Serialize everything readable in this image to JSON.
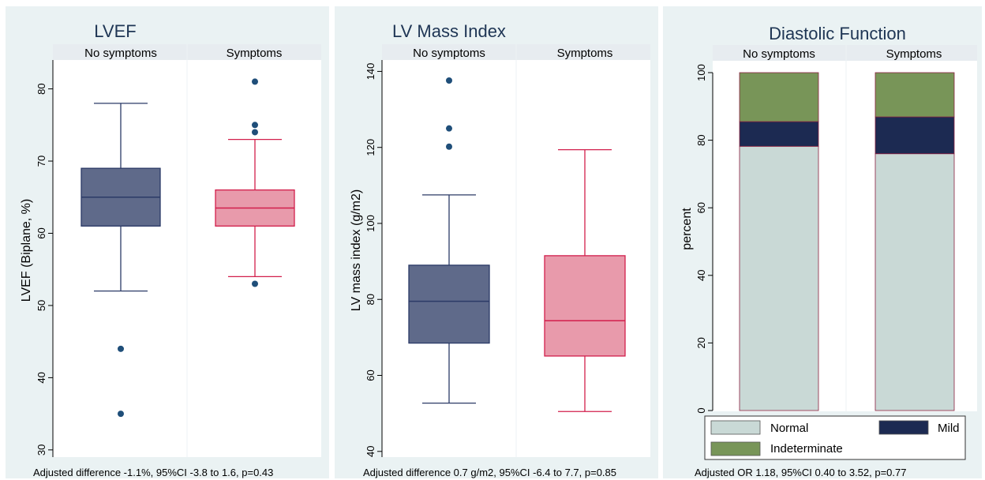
{
  "figure": {
    "panel_bg": "#eaf2f3",
    "plot_bg": "#ffffff",
    "strip_bg": "#e7ecf0"
  },
  "chart_data": [
    {
      "type": "box",
      "title": "LVEF",
      "ylabel": "LVEF (Biplane, %)",
      "ylim": [
        29,
        84
      ],
      "yticks": [
        30,
        40,
        50,
        60,
        70,
        80
      ],
      "grid": false,
      "panels": [
        "No symptoms",
        "Symptoms"
      ],
      "colors": {
        "fill": [
          "#5f6a8a",
          "#e89aab"
        ],
        "line": [
          "#2b3a67",
          "#d21f4c"
        ]
      },
      "boxes": [
        {
          "group": "No symptoms",
          "whisker_low": 52,
          "q1": 61,
          "median": 65,
          "q3": 69,
          "whisker_high": 78,
          "outliers": [
            44,
            35
          ]
        },
        {
          "group": "Symptoms",
          "whisker_low": 54,
          "q1": 61,
          "median": 63.5,
          "q3": 66,
          "whisker_high": 73,
          "outliers": [
            81,
            75,
            74,
            53
          ]
        }
      ],
      "note": "Adjusted difference -1.1%, 95%CI -3.8 to 1.6, p=0.43"
    },
    {
      "type": "box",
      "title": "LV Mass Index",
      "ylabel": "LV mass index (g/m2)",
      "ylim": [
        38.5,
        143
      ],
      "yticks": [
        40,
        60,
        80,
        100,
        120,
        140
      ],
      "grid": false,
      "panels": [
        "No symptoms",
        "Symptoms"
      ],
      "colors": {
        "fill": [
          "#5f6a8a",
          "#e89aab"
        ],
        "line": [
          "#2b3a67",
          "#d21f4c"
        ]
      },
      "boxes": [
        {
          "group": "No symptoms",
          "whisker_low": 52.7,
          "q1": 68.5,
          "median": 79.5,
          "q3": 89,
          "whisker_high": 107.5,
          "outliers": [
            137.6,
            125,
            120.2
          ]
        },
        {
          "group": "Symptoms",
          "whisker_low": 50.5,
          "q1": 65.1,
          "median": 74.4,
          "q3": 91.5,
          "whisker_high": 119.4,
          "outliers": []
        }
      ],
      "note": "Adjusted difference 0.7 g/m2, 95%CI -6.4 to 7.7, p=0.85"
    },
    {
      "type": "stacked_bar",
      "title": "Diastolic Function",
      "ylabel": "percent",
      "ylim": [
        0,
        100
      ],
      "yticks": [
        0,
        20,
        40,
        60,
        80,
        100
      ],
      "grid": false,
      "categories": [
        "No symptoms",
        "Symptoms"
      ],
      "series": [
        {
          "name": "Normal",
          "color": "#c9d9d6",
          "values": [
            78.2,
            76.0
          ]
        },
        {
          "name": "Mild",
          "color": "#1c2a52",
          "values": [
            7.3,
            10.9
          ]
        },
        {
          "name": "Indeterminate",
          "color": "#789558",
          "values": [
            14.5,
            13.1
          ]
        }
      ],
      "legend_position": "bottom",
      "note": "Adjusted OR 1.18, 95%CI 0.40 to 3.52, p=0.77"
    }
  ]
}
